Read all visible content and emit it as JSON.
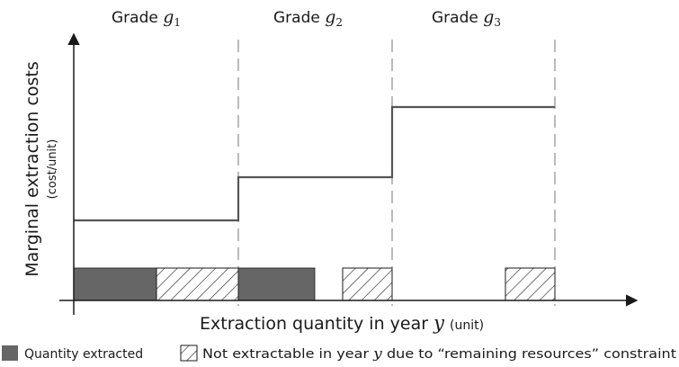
{
  "grades": [
    {
      "label": "Grade",
      "var": "g",
      "sub": "1"
    },
    {
      "label": "Grade",
      "var": "g",
      "sub": "2"
    },
    {
      "label": "Grade",
      "var": "g",
      "sub": "3"
    }
  ],
  "y_axis": {
    "title": "Marginal extraction costs",
    "unit": "(cost/unit)"
  },
  "x_axis": {
    "title_prefix": "Extraction quantity in year",
    "var": "y",
    "unit": "(unit)"
  },
  "legend": {
    "extracted": "Quantity extracted",
    "not_extractable_prefix": "Not extractable in year",
    "not_extractable_var": "y",
    "not_extractable_suffix": "due to “remaining resources” constraint"
  },
  "colors": {
    "line": "#555555",
    "extracted_fill": "#666666",
    "axis": "#1a1a1a",
    "divider": "#777777"
  }
}
